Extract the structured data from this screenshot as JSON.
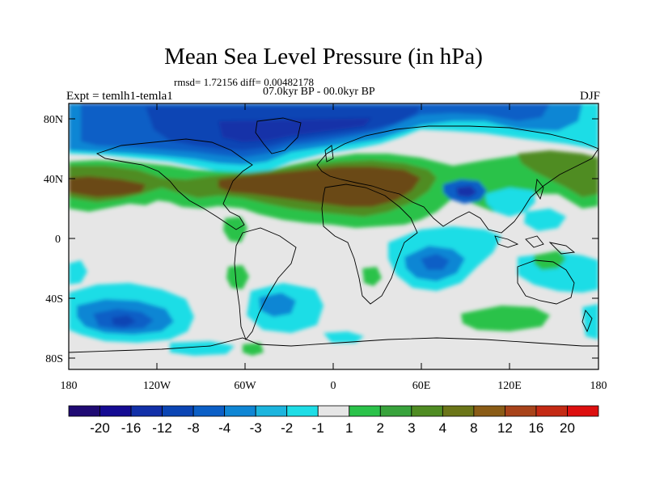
{
  "header": {
    "title": "Mean Sea Level Pressure (in hPa)",
    "stats": "rmsd= 1.72156 diff= 0.00482178",
    "period": "07.0kyr BP - 00.0kyr BP",
    "experiment": "Expt = temlh1-temla1",
    "season": "DJF"
  },
  "axes": {
    "lon_ticks": [
      "180",
      "120W",
      "60W",
      "0",
      "60E",
      "120E",
      "180"
    ],
    "lat_ticks": [
      "80N",
      "40N",
      "0",
      "40S",
      "80S"
    ]
  },
  "colorbar": {
    "labels": [
      "-20",
      "-16",
      "-12",
      "-8",
      "-4",
      "-3",
      "-2",
      "-1",
      "1",
      "2",
      "3",
      "4",
      "8",
      "12",
      "16",
      "20"
    ],
    "colors": [
      "#1f0a73",
      "#150b93",
      "#1230a8",
      "#0b45b4",
      "#0c5fc6",
      "#0f86d4",
      "#1cb5de",
      "#1edde6",
      "#e6e6e6",
      "#2bc24a",
      "#38a33c",
      "#4f8c23",
      "#6b7518",
      "#8a5c16",
      "#a8431a",
      "#c42a14",
      "#dd0f0f"
    ]
  },
  "palette": {
    "land_neutral": "#e6e6e6",
    "blue_dark": "#0c3fb0",
    "blue_mid": "#0f86d4",
    "cyan": "#1edde6",
    "green": "#2bc24a",
    "olive": "#4f8c23",
    "brown": "#6b4a18"
  }
}
